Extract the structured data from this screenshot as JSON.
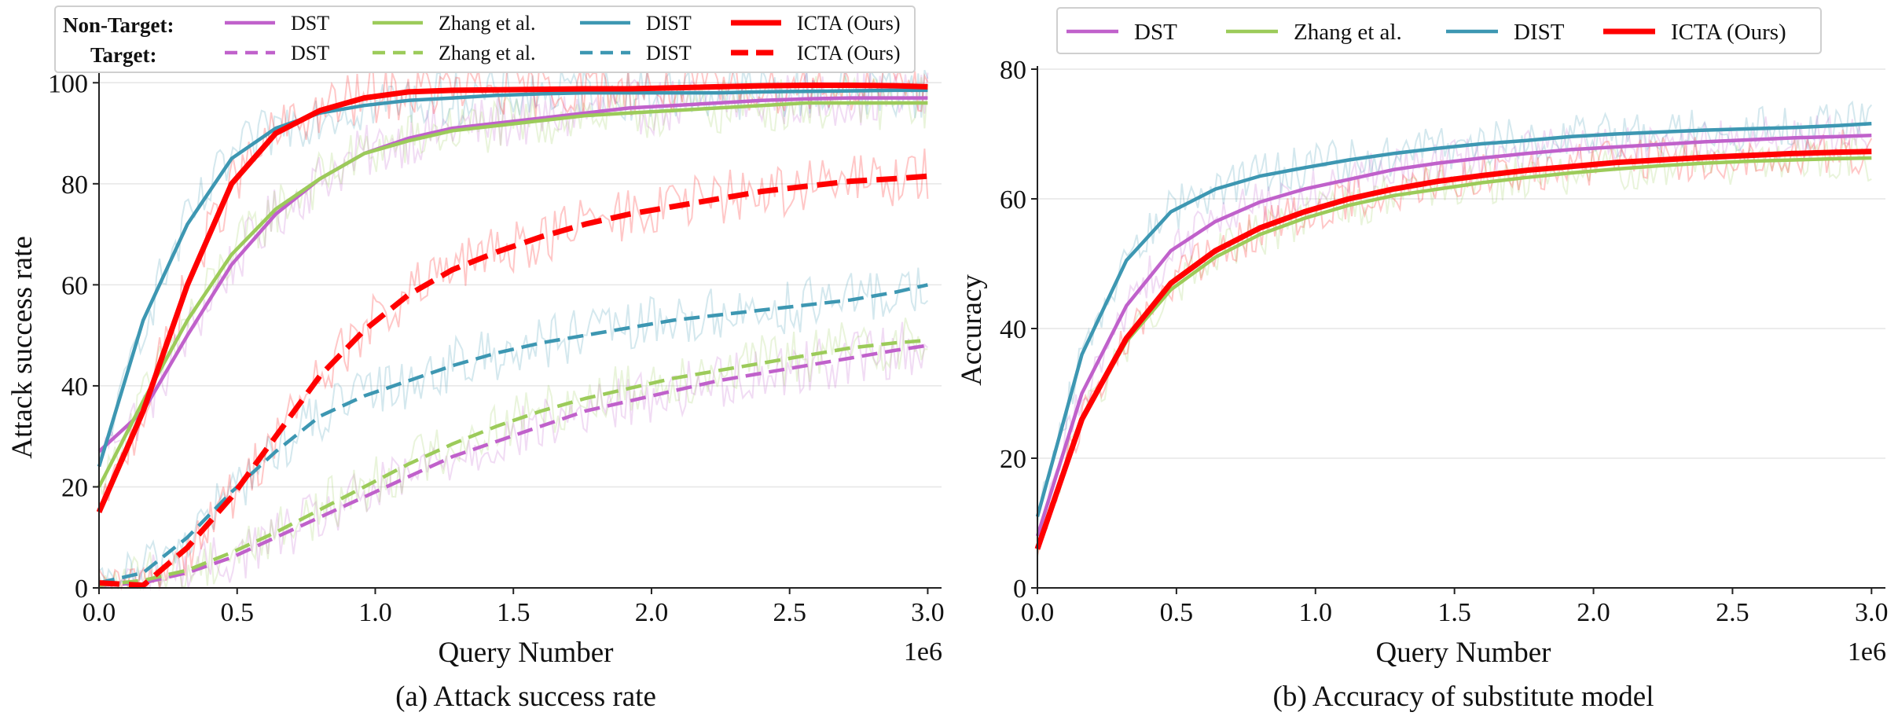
{
  "legend_a": {
    "non_target_label": "Non-Target:",
    "target_label": "Target:"
  },
  "series_styles": [
    {
      "name": "DST",
      "color": "#c061cb"
    },
    {
      "name": "Zhang et al.",
      "color": "#9ccb5a"
    },
    {
      "name": "DIST",
      "color": "#3d97b2"
    },
    {
      "name": "ICTA (Ours)",
      "color": "#ff0000"
    }
  ],
  "chart_data": [
    {
      "type": "line",
      "caption": "(a) Attack success rate",
      "xlabel": "Query Number",
      "ylabel": "Attack success rate",
      "x_offset_label": "1e6",
      "xlim": [
        0,
        3.05
      ],
      "ylim": [
        0,
        103
      ],
      "x_ticks": [
        0.0,
        0.5,
        1.0,
        1.5,
        2.0,
        2.5,
        3.0
      ],
      "x_tick_labels": [
        "0.0",
        "0.5",
        "1.0",
        "1.5",
        "2.0",
        "2.5",
        "3.0"
      ],
      "y_ticks": [
        0,
        20,
        40,
        60,
        80,
        100
      ],
      "y_tick_labels": [
        "0",
        "20",
        "40",
        "60",
        "80",
        "100"
      ],
      "grid": "horizontal",
      "legend_position": "top",
      "x": [
        0.0,
        0.16,
        0.32,
        0.48,
        0.64,
        0.8,
        0.96,
        1.12,
        1.28,
        1.44,
        1.6,
        1.76,
        1.92,
        2.08,
        2.24,
        2.4,
        2.56,
        2.72,
        2.88,
        3.0
      ],
      "series": [
        {
          "name": "DST",
          "group": "Non-Target",
          "style": "solid",
          "values": [
            27,
            35,
            50,
            64,
            74,
            81,
            86,
            89,
            91,
            92,
            93,
            94,
            95,
            95.5,
            96,
            96.5,
            96.8,
            97,
            97,
            97
          ]
        },
        {
          "name": "Zhang et al.",
          "group": "Non-Target",
          "style": "solid",
          "values": [
            20,
            37,
            53,
            66,
            75,
            81,
            86,
            88.5,
            90.5,
            91.5,
            92.5,
            93.5,
            94,
            94.5,
            95,
            95.5,
            96,
            96,
            96,
            96
          ]
        },
        {
          "name": "DIST",
          "group": "Non-Target",
          "style": "solid",
          "values": [
            24,
            53,
            72,
            85,
            91,
            94,
            95.5,
            96.5,
            97,
            97.5,
            97.8,
            98,
            98,
            98,
            98,
            98.2,
            98.3,
            98.4,
            98.5,
            98.5
          ]
        },
        {
          "name": "ICTA (Ours)",
          "group": "Non-Target",
          "style": "solid",
          "values": [
            15,
            35,
            60,
            80,
            90,
            94.5,
            97,
            98.2,
            98.5,
            98.6,
            98.7,
            98.8,
            98.8,
            99,
            99.2,
            99.4,
            99.5,
            99.5,
            99.4,
            99.2
          ]
        },
        {
          "name": "DST",
          "group": "Target",
          "style": "dashed",
          "values": [
            0.5,
            1,
            3,
            6,
            10,
            14,
            18,
            22,
            26,
            29,
            32,
            35,
            37,
            39,
            41,
            42.5,
            44,
            45.5,
            47,
            48
          ]
        },
        {
          "name": "Zhang et al.",
          "group": "Target",
          "style": "dashed",
          "values": [
            0.5,
            1.5,
            3.5,
            7,
            11,
            15.5,
            20,
            24.5,
            28.5,
            32,
            35,
            37.5,
            39.5,
            41.5,
            43,
            44.5,
            46,
            47.5,
            48.5,
            49
          ]
        },
        {
          "name": "DIST",
          "group": "Target",
          "style": "dashed",
          "values": [
            1,
            3,
            10,
            19,
            27,
            34,
            38,
            41,
            44,
            46.5,
            48.5,
            50,
            51.5,
            53,
            54,
            55,
            56,
            57,
            58.5,
            60
          ]
        },
        {
          "name": "ICTA (Ours)",
          "group": "Target",
          "style": "dashed",
          "values": [
            1,
            0.5,
            8,
            18,
            30,
            42,
            51,
            58,
            63,
            66.5,
            69.5,
            72,
            74,
            75.5,
            77,
            78.5,
            79.5,
            80.5,
            81,
            81.5
          ]
        }
      ]
    },
    {
      "type": "line",
      "caption": "(b) Accuracy of substitute model",
      "xlabel": "Query Number",
      "ylabel": "Accuracy",
      "x_offset_label": "1e6",
      "xlim": [
        0,
        3.05
      ],
      "ylim": [
        0,
        80
      ],
      "x_ticks": [
        0.0,
        0.5,
        1.0,
        1.5,
        2.0,
        2.5,
        3.0
      ],
      "x_tick_labels": [
        "0.0",
        "0.5",
        "1.0",
        "1.5",
        "2.0",
        "2.5",
        "3.0"
      ],
      "y_ticks": [
        0,
        20,
        40,
        60,
        80
      ],
      "y_tick_labels": [
        "0",
        "20",
        "40",
        "60",
        "80"
      ],
      "grid": "horizontal",
      "legend_position": "top",
      "x": [
        0.0,
        0.16,
        0.32,
        0.48,
        0.64,
        0.8,
        0.96,
        1.12,
        1.28,
        1.44,
        1.6,
        1.76,
        1.92,
        2.08,
        2.24,
        2.4,
        2.56,
        2.72,
        2.88,
        3.0
      ],
      "series": [
        {
          "name": "DST",
          "style": "solid",
          "values": [
            8,
            30,
            43.5,
            52,
            56.5,
            59.5,
            61.5,
            63,
            64.5,
            65.5,
            66.3,
            67,
            67.6,
            68,
            68.4,
            68.8,
            69.1,
            69.4,
            69.6,
            69.8
          ]
        },
        {
          "name": "Zhang et al.",
          "style": "solid",
          "values": [
            6,
            26,
            38,
            46,
            51,
            54.5,
            57,
            59,
            60.5,
            61.5,
            62.5,
            63.3,
            64,
            64.6,
            65.1,
            65.5,
            65.8,
            66,
            66.2,
            66.3
          ]
        },
        {
          "name": "DIST",
          "style": "solid",
          "values": [
            11,
            36,
            50.5,
            58,
            61.5,
            63.5,
            64.8,
            66,
            67,
            67.8,
            68.5,
            69,
            69.6,
            70,
            70.3,
            70.6,
            70.8,
            71,
            71.3,
            71.6
          ]
        },
        {
          "name": "ICTA (Ours)",
          "style": "solid",
          "values": [
            6,
            26,
            38.5,
            47,
            52,
            55.5,
            58,
            60,
            61.5,
            62.7,
            63.6,
            64.4,
            65,
            65.6,
            66,
            66.4,
            66.7,
            67,
            67.2,
            67.3
          ]
        }
      ]
    }
  ]
}
